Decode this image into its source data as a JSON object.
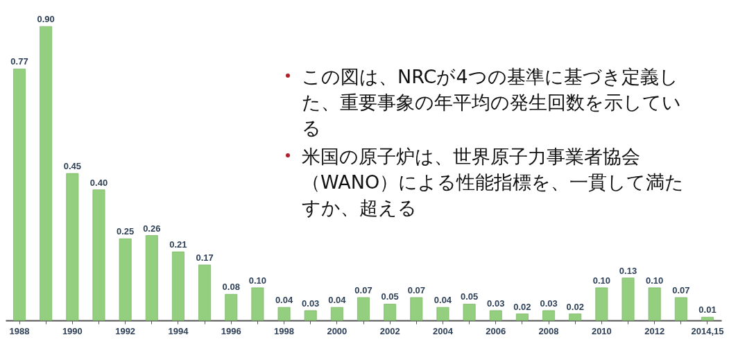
{
  "chart_data": {
    "type": "bar",
    "categories": [
      "1988",
      null,
      "1990",
      null,
      "1992",
      null,
      "1994",
      null,
      "1996",
      null,
      "1998",
      null,
      "2000",
      null,
      "2002",
      null,
      "2004",
      null,
      "2006",
      null,
      "2008",
      null,
      "2010",
      null,
      "2012",
      null,
      "2014,15"
    ],
    "values": [
      0.77,
      0.9,
      0.45,
      0.4,
      0.25,
      0.26,
      0.21,
      0.17,
      0.08,
      0.1,
      0.04,
      0.03,
      0.04,
      0.07,
      0.05,
      0.07,
      0.04,
      0.05,
      0.03,
      0.02,
      0.03,
      0.02,
      0.1,
      0.13,
      0.1,
      0.07,
      0.01
    ],
    "color": "#93cf7e",
    "value_labels": [
      "0.77",
      "0.90",
      "0.45",
      "0.40",
      "0.25",
      "0.26",
      "0.21",
      "0.17",
      "0.08",
      "0.10",
      "0.04",
      "0.03",
      "0.04",
      "0.07",
      "0.05",
      "0.07",
      "0.04",
      "0.05",
      "0.03",
      "0.02",
      "0.03",
      "0.02",
      "0.10",
      "0.13",
      "0.10",
      "0.07",
      "0.01"
    ],
    "annotations": [
      "この図は、NRCが4つの基準に基づき定義した、重要事象の年平均の発生回数を示している",
      "米国の原子炉は、世界原子力事業者協会（WANO）による性能指標を、一貫して満たすか、超える"
    ]
  }
}
